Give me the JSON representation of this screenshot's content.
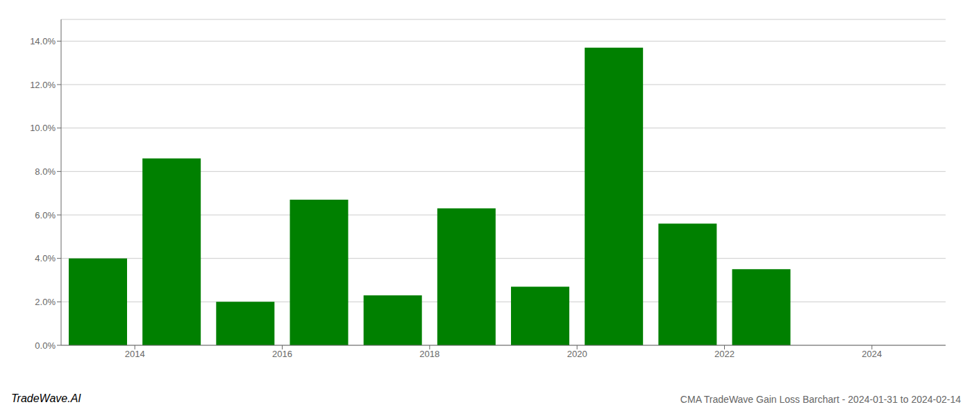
{
  "chart_data": {
    "type": "bar",
    "title": "CMA TradeWave Gain Loss Barchart - 2024-01-31 to 2024-02-14",
    "annotations": [
      "TradeWave.AI"
    ],
    "x": [
      2013.5,
      2014.5,
      2015.5,
      2016.5,
      2017.5,
      2018.5,
      2019.5,
      2020.5,
      2021.5,
      2022.5,
      2023.5
    ],
    "values": [
      0.04,
      0.086,
      0.02,
      0.067,
      0.023,
      0.063,
      0.027,
      0.137,
      0.056,
      0.035,
      0.0
    ],
    "color": "#008000",
    "xlim": [
      2013.0,
      2025.0
    ],
    "xticks": [
      2014,
      2016,
      2018,
      2020,
      2022,
      2024
    ],
    "ylim": [
      0,
      0.15
    ],
    "yticks": [
      {
        "value": 0.0,
        "label": "0.0%"
      },
      {
        "value": 0.02,
        "label": "2.0%"
      },
      {
        "value": 0.04,
        "label": "4.0%"
      },
      {
        "value": 0.06,
        "label": "6.0%"
      },
      {
        "value": 0.08,
        "label": "8.0%"
      },
      {
        "value": 0.1,
        "label": "10.0%"
      },
      {
        "value": 0.12,
        "label": "12.0%"
      },
      {
        "value": 0.14,
        "label": "14.0%"
      }
    ],
    "grid": true
  }
}
